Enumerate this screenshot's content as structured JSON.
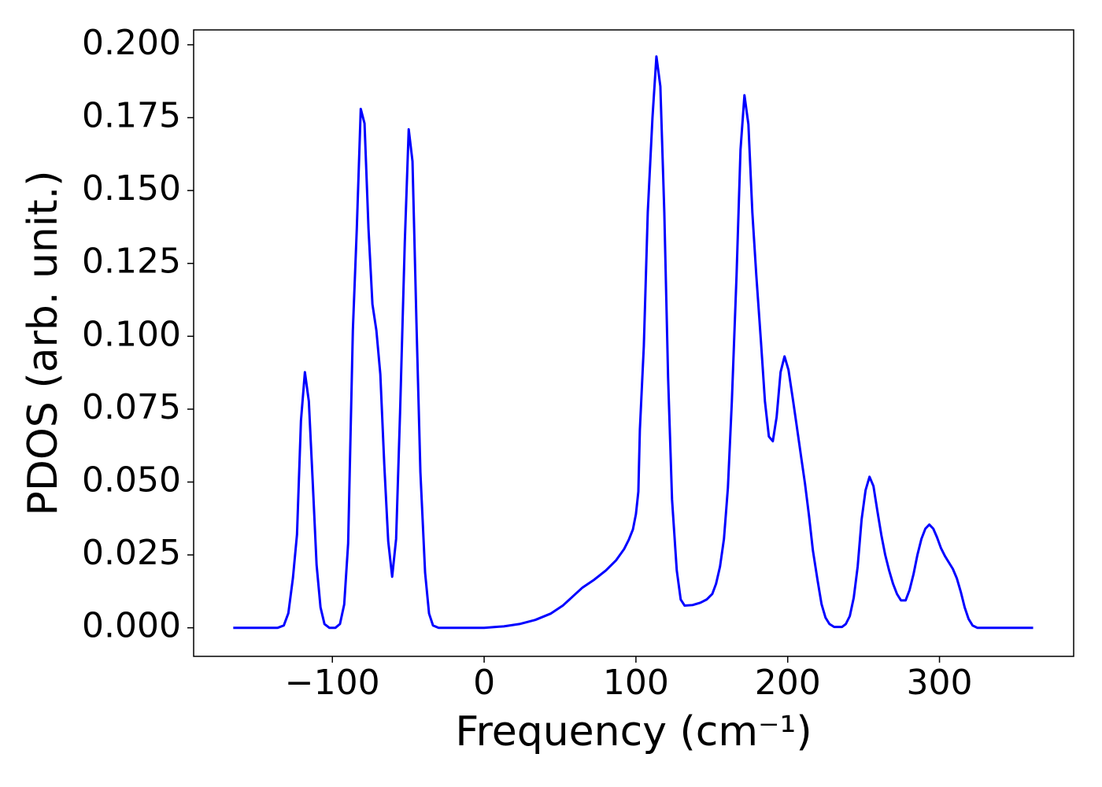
{
  "chart_data": {
    "type": "line",
    "x_label": "Frequency (cm⁻¹)",
    "y_label": "PDOS (arb. unit.)",
    "x": [
      -165.3,
      -136,
      -132,
      -129,
      -126,
      -123.3,
      -120.7,
      -118.1,
      -115.5,
      -113,
      -110.4,
      -107.8,
      -105.2,
      -102,
      -98,
      -95,
      -92.2,
      -89.6,
      -86.5,
      -83.9,
      -81.3,
      -78.8,
      -76.2,
      -73.6,
      -71,
      -68.4,
      -65.8,
      -63.2,
      -60.6,
      -58,
      -55.4,
      -52.3,
      -49.7,
      -47.2,
      -44.6,
      -42,
      -38.9,
      -36.3,
      -33.7,
      -30,
      0,
      13,
      23.3,
      33.7,
      44,
      51.8,
      58.5,
      64.8,
      72.5,
      80.3,
      87,
      92.2,
      95.3,
      98,
      100,
      101.6,
      102.6,
      105.2,
      107.8,
      110.9,
      113.5,
      116.1,
      118.7,
      121.2,
      123.8,
      126.9,
      129.5,
      132.1,
      137.3,
      142.5,
      146.6,
      150.3,
      152.8,
      155.4,
      158,
      160.6,
      163.2,
      166.3,
      168.9,
      171.5,
      174.1,
      176.7,
      179.3,
      182.4,
      185,
      187.6,
      190.2,
      192.7,
      195.3,
      197.9,
      200.5,
      203.6,
      206.2,
      208.8,
      211.4,
      214,
      216.6,
      219.7,
      222.3,
      224.9,
      227.5,
      230.6,
      235.8,
      238.3,
      240.9,
      243.5,
      246.1,
      248.7,
      251.3,
      253.9,
      256.5,
      259.1,
      261.7,
      264.2,
      266.8,
      269.4,
      272,
      274.6,
      277.7,
      280.3,
      282.9,
      285.5,
      288.1,
      290.7,
      293.3,
      295.9,
      298.4,
      301,
      303.6,
      306.2,
      308.8,
      311.4,
      314,
      316.6,
      319.2,
      321.8,
      324.9,
      361.7
    ],
    "series": [
      {
        "color": "#0000ff",
        "values": [
          0,
          0,
          0.0008,
          0.005,
          0.017,
          0.032,
          0.071,
          0.0877,
          0.0777,
          0.0507,
          0.0216,
          0.007,
          0.0013,
          0,
          0,
          0.0013,
          0.008,
          0.029,
          0.102,
          0.137,
          0.178,
          0.173,
          0.137,
          0.111,
          0.102,
          0.087,
          0.056,
          0.0297,
          0.0175,
          0.0305,
          0.0737,
          0.132,
          0.171,
          0.16,
          0.1047,
          0.0534,
          0.0189,
          0.0049,
          0.0008,
          0,
          0,
          0.0005,
          0.0013,
          0.0027,
          0.0049,
          0.0076,
          0.0108,
          0.0138,
          0.0165,
          0.0197,
          0.0232,
          0.027,
          0.0302,
          0.0337,
          0.039,
          0.0467,
          0.068,
          0.0966,
          0.1425,
          0.175,
          0.196,
          0.1857,
          0.1425,
          0.0858,
          0.044,
          0.0197,
          0.0097,
          0.0076,
          0.0078,
          0.0086,
          0.0097,
          0.0116,
          0.0151,
          0.021,
          0.0305,
          0.048,
          0.0777,
          0.121,
          0.164,
          0.1827,
          0.1727,
          0.1425,
          0.121,
          0.098,
          0.0777,
          0.0656,
          0.064,
          0.0723,
          0.0877,
          0.0931,
          0.0885,
          0.0777,
          0.0683,
          0.0588,
          0.0494,
          0.0386,
          0.0265,
          0.0162,
          0.0081,
          0.0035,
          0.0013,
          0.0003,
          0.0003,
          0.0013,
          0.004,
          0.0103,
          0.021,
          0.0372,
          0.0472,
          0.0518,
          0.0486,
          0.04,
          0.0318,
          0.0251,
          0.0197,
          0.0151,
          0.0116,
          0.0094,
          0.0094,
          0.013,
          0.0184,
          0.0251,
          0.0305,
          0.034,
          0.0354,
          0.034,
          0.031,
          0.0273,
          0.0246,
          0.0224,
          0.0202,
          0.017,
          0.0124,
          0.007,
          0.003,
          0.0008,
          0,
          0
        ]
      }
    ],
    "xlim": [
      -191.4,
      388.4
    ],
    "ylim": [
      -0.0098,
      0.2051
    ],
    "xticks": [
      {
        "value": -100,
        "label": "−100"
      },
      0,
      100,
      200,
      300
    ],
    "yticks": [
      {
        "value": 0,
        "label": "0.000"
      },
      {
        "value": 0.025,
        "label": "0.025"
      },
      {
        "value": 0.05,
        "label": "0.050"
      },
      {
        "value": 0.075,
        "label": "0.075"
      },
      {
        "value": 0.1,
        "label": "0.100"
      },
      {
        "value": 0.125,
        "label": "0.125"
      },
      {
        "value": 0.15,
        "label": "0.150"
      },
      {
        "value": 0.175,
        "label": "0.175"
      },
      {
        "value": 0.2,
        "label": "0.200"
      }
    ],
    "grid": false
  }
}
